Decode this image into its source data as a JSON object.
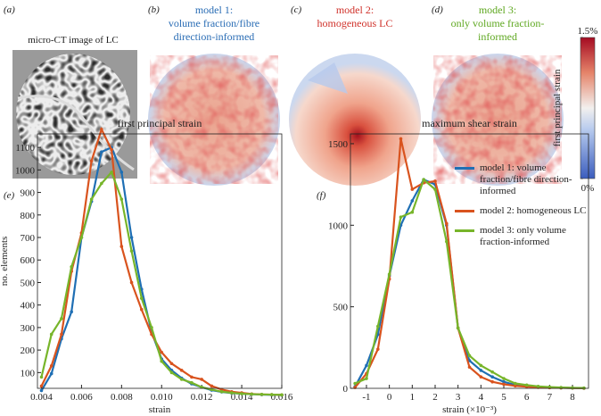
{
  "panels": {
    "a": {
      "label": "(a)",
      "title": "micro-CT image of LC"
    },
    "b": {
      "label": "(b)",
      "title": [
        "model 1:",
        "volume fraction/fibre",
        "direction-informed"
      ]
    },
    "c": {
      "label": "(c)",
      "title": [
        "model 2:",
        "homogeneous LC"
      ]
    },
    "d": {
      "label": "(d)",
      "title": [
        "model 3:",
        "only volume fraction-",
        "informed"
      ]
    },
    "e": {
      "label": "(e)"
    },
    "f": {
      "label": "(f)"
    }
  },
  "colorbar": {
    "label": "first principal strain",
    "lim": [
      0,
      1.5
    ],
    "ticks": [
      {
        "value": 1.5,
        "label": "1.5%"
      },
      {
        "value": 0,
        "label": "0%"
      }
    ]
  },
  "chart_data": [
    {
      "type": "line",
      "title": "first principal strain",
      "x_label": "strain",
      "y_label": "no. elements",
      "x": [
        0.004,
        0.0045,
        0.005,
        0.0055,
        0.006,
        0.0065,
        0.007,
        0.0075,
        0.008,
        0.0085,
        0.009,
        0.0095,
        0.01,
        0.0105,
        0.011,
        0.0115,
        0.012,
        0.0125,
        0.013,
        0.0135,
        0.014,
        0.0145,
        0.015,
        0.0155,
        0.016
      ],
      "xlim": [
        0.0038,
        0.016
      ],
      "xticks": [
        {
          "value": 0.004,
          "label": "0.004"
        },
        {
          "value": 0.006,
          "label": "0.006"
        },
        {
          "value": 0.008,
          "label": "0.008"
        },
        {
          "value": 0.01,
          "label": "0.010"
        },
        {
          "value": 0.012,
          "label": "0.012"
        },
        {
          "value": 0.014,
          "label": "0.014"
        },
        {
          "value": 0.016,
          "label": "0.016"
        }
      ],
      "ylim": [
        30,
        1160
      ],
      "yticks": [
        100,
        200,
        300,
        400,
        500,
        600,
        700,
        800,
        900,
        1000,
        1100
      ],
      "series": [
        {
          "name": "model 1: volume fraction/fibre direction-informed",
          "color": "#1f6fb4",
          "values": [
            20,
            95,
            250,
            370,
            700,
            860,
            1080,
            1100,
            990,
            700,
            470,
            280,
            160,
            110,
            75,
            50,
            35,
            22,
            14,
            9,
            6,
            4,
            2,
            1,
            0
          ]
        },
        {
          "name": "model 2: homogeneous LC",
          "color": "#d9531e",
          "values": [
            40,
            130,
            270,
            550,
            720,
            1040,
            1180,
            1090,
            660,
            500,
            380,
            270,
            190,
            140,
            110,
            80,
            70,
            40,
            25,
            15,
            10,
            5,
            3,
            2,
            1
          ]
        },
        {
          "name": "model 3: only volume fraction-informed",
          "color": "#77b52a",
          "values": [
            80,
            270,
            340,
            570,
            700,
            870,
            940,
            990,
            870,
            640,
            430,
            300,
            150,
            100,
            70,
            55,
            35,
            25,
            15,
            10,
            6,
            4,
            3,
            2,
            1
          ]
        }
      ]
    },
    {
      "type": "line",
      "title": "maximum shear strain",
      "x_label": "strain (×10⁻³)",
      "x": [
        -1.5,
        -1,
        -0.5,
        0,
        0.5,
        1,
        1.5,
        2,
        2.5,
        3,
        3.5,
        4,
        4.5,
        5,
        5.5,
        6,
        6.5,
        7,
        7.5,
        8,
        8.5
      ],
      "xlim": [
        -1.7,
        8.7
      ],
      "xticks": [
        -1,
        0,
        1,
        2,
        3,
        4,
        5,
        6,
        7,
        8
      ],
      "ylim": [
        0,
        1560
      ],
      "yticks": [
        0,
        500,
        1000,
        1500
      ],
      "legend": "upper right",
      "series": [
        {
          "name": "model 1: volume fraction/fibre direction-informed",
          "color": "#1f6fb4",
          "values": [
            10,
            140,
            330,
            690,
            1000,
            1150,
            1280,
            1250,
            1000,
            370,
            170,
            110,
            70,
            40,
            20,
            12,
            8,
            5,
            3,
            2,
            1
          ]
        },
        {
          "name": "model 2: homogeneous LC",
          "color": "#d9531e",
          "values": [
            5,
            90,
            240,
            670,
            1530,
            1220,
            1260,
            1270,
            1010,
            370,
            130,
            70,
            40,
            25,
            15,
            10,
            6,
            4,
            3,
            2,
            1
          ]
        },
        {
          "name": "model 3: only volume fraction-informed",
          "color": "#77b52a",
          "values": [
            30,
            60,
            380,
            700,
            1050,
            1080,
            1280,
            1220,
            900,
            370,
            200,
            140,
            100,
            60,
            30,
            20,
            12,
            8,
            5,
            3,
            2
          ]
        }
      ]
    }
  ]
}
